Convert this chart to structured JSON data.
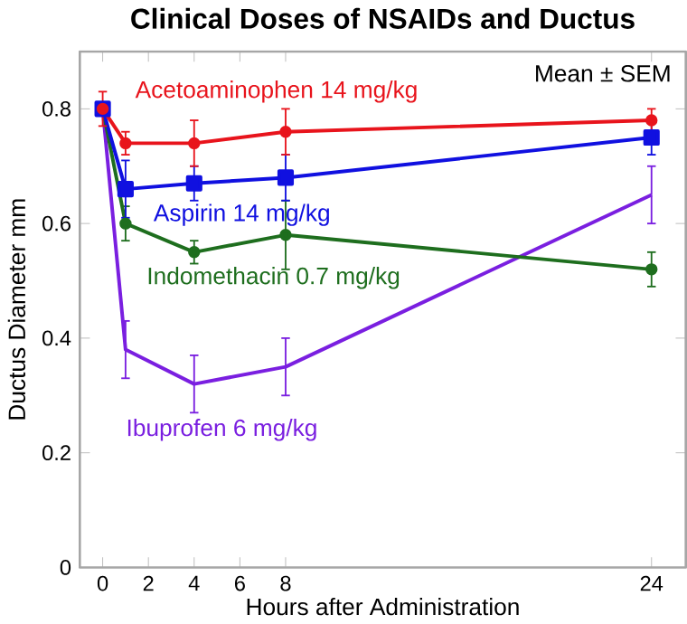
{
  "chart_data": {
    "type": "line",
    "title": "Clinical Doses of NSAIDs and Ductus",
    "xlabel": "Hours after Administration",
    "ylabel": "Ductus Diameter mm",
    "x": [
      0,
      1,
      4,
      8,
      24
    ],
    "series": [
      {
        "name": "Acetoaminophen 14 mg/kg",
        "color": "#e8141c",
        "marker": "circle",
        "values": [
          0.8,
          0.74,
          0.74,
          0.76,
          0.78
        ],
        "errors": [
          0.03,
          0.02,
          0.04,
          0.04,
          0.02
        ]
      },
      {
        "name": "Aspirin 14 mg/kg",
        "color": "#1010e0",
        "marker": "square",
        "values": [
          0.8,
          0.66,
          0.67,
          0.68,
          0.75
        ],
        "errors": [
          null,
          0.05,
          0.03,
          0.04,
          0.03
        ]
      },
      {
        "name": "Indomethacin 0.7 mg/kg",
        "color": "#1e6e1e",
        "marker": "circle",
        "values": [
          0.8,
          0.6,
          0.55,
          0.58,
          0.52
        ],
        "errors": [
          null,
          0.03,
          0.02,
          0.06,
          0.03
        ]
      },
      {
        "name": "Ibuprofen 6 mg/kg",
        "color": "#7a1fe0",
        "marker": "none",
        "values": [
          0.8,
          0.38,
          0.32,
          0.35,
          0.65
        ],
        "errors": [
          null,
          0.05,
          0.05,
          0.05,
          0.05
        ]
      }
    ],
    "xlim": [
      -1,
      25.5
    ],
    "ylim": [
      0,
      0.9
    ],
    "xticks": [
      0,
      2,
      4,
      6,
      8,
      24
    ],
    "yticks": [
      0,
      0.2,
      0.4,
      0.6,
      0.8
    ],
    "annotations": [
      "Mean ± SEM"
    ],
    "grid": false,
    "legend": false,
    "line_style": "solid"
  }
}
